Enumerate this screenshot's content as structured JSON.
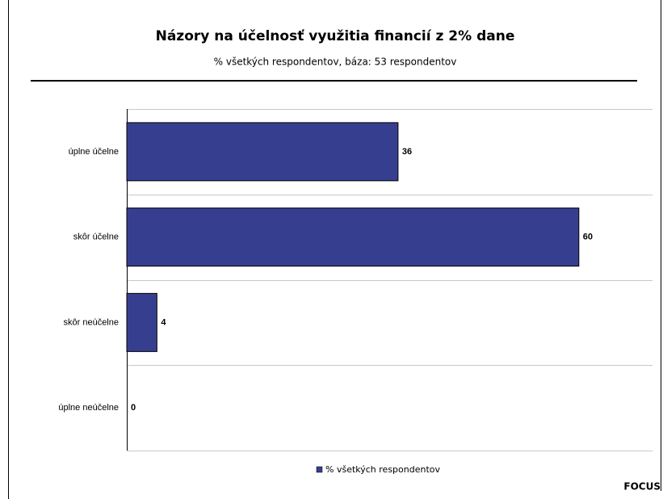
{
  "chart_data": {
    "type": "bar",
    "orientation": "horizontal",
    "title": "Názory na účelnosť využitia financií z 2% dane",
    "subtitle": "% všetkých respondentov, báza: 53 respondentov",
    "categories": [
      "úplne účelne",
      "skôr účelne",
      "skôr neúčelne",
      "úplne neúčelne"
    ],
    "series": [
      {
        "name": "% všetkých respondentov",
        "color": "#363f8f",
        "values": [
          36,
          60,
          4,
          0
        ]
      }
    ],
    "grid": true,
    "legend": "bottom",
    "source": "FOCUS"
  }
}
